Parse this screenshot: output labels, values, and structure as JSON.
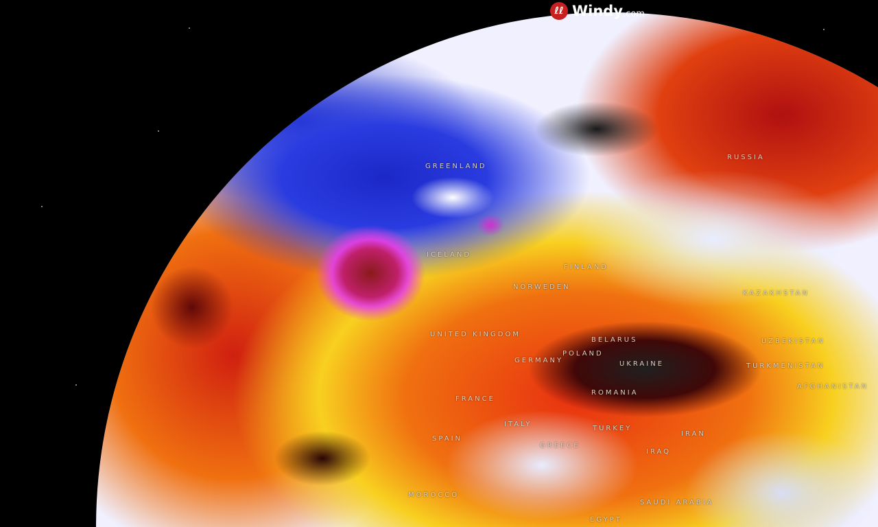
{
  "brand": {
    "logo_icon": "windy-logo-icon",
    "name": "Windy",
    "suffix": ".com"
  },
  "map": {
    "type": "globe-weather-overlay",
    "colors": {
      "cold": "#2a3ce0",
      "extreme_cold": "#e040e0",
      "neutral": "#f0f0ff",
      "warm": "#f8d020",
      "hot": "#e83010",
      "extreme_hot": "#202020"
    },
    "labels": [
      {
        "name": "GREENLAND"
      },
      {
        "name": "RUSSIA"
      },
      {
        "name": "ICELAND"
      },
      {
        "name": "FINLAND"
      },
      {
        "name": "NORWEDEN"
      },
      {
        "name": "UNITED KINGDOM"
      },
      {
        "name": "BELARUS"
      },
      {
        "name": "POLAND"
      },
      {
        "name": "GERMANY"
      },
      {
        "name": "UKRAINE"
      },
      {
        "name": "KAZAKHSTAN"
      },
      {
        "name": "UZBEKISTAN"
      },
      {
        "name": "TURKMENISTAN"
      },
      {
        "name": "AFGHANISTAN"
      },
      {
        "name": "ROMANIA"
      },
      {
        "name": "FRANCE"
      },
      {
        "name": "ITALY"
      },
      {
        "name": "SPAIN"
      },
      {
        "name": "GREECE"
      },
      {
        "name": "TURKEY"
      },
      {
        "name": "IRAN"
      },
      {
        "name": "IRAQ"
      },
      {
        "name": "MOROCCO"
      },
      {
        "name": "SAUDI ARABIA"
      },
      {
        "name": "EGYPT"
      }
    ]
  }
}
